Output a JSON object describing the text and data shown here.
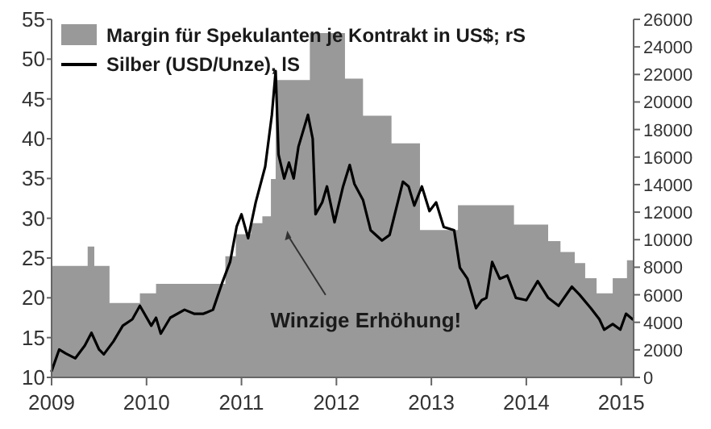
{
  "chart_data": {
    "type": "line",
    "xlim": [
      2009,
      2015.13
    ],
    "xticks": [
      2009,
      2010,
      2011,
      2012,
      2013,
      2014,
      2015
    ],
    "ylim": [
      10,
      55
    ],
    "yticks": [
      10,
      15,
      20,
      25,
      30,
      35,
      40,
      45,
      50,
      55
    ],
    "y2lim": [
      0,
      26000
    ],
    "y2ticks": [
      0,
      2000,
      4000,
      6000,
      8000,
      10000,
      12000,
      14000,
      16000,
      18000,
      20000,
      22000,
      24000,
      26000
    ],
    "legend": "top left",
    "grid": false,
    "annotations": [
      "Winzige Erhöhung!"
    ],
    "series": [
      {
        "name": "Margin für Spekulanten je Kontrakt in US$; rS",
        "type": "area",
        "axis": "y2",
        "color": "#999999",
        "x": [
          2009,
          2009.38,
          2009.38,
          2009.45,
          2009.45,
          2009.61,
          2009.61,
          2009.93,
          2009.93,
          2010.1,
          2010.1,
          2010.83,
          2010.83,
          2010.94,
          2010.94,
          2011.1,
          2011.1,
          2011.22,
          2011.22,
          2011.31,
          2011.31,
          2011.36,
          2011.36,
          2011.72,
          2011.72,
          2012.09,
          2012.09,
          2012.28,
          2012.28,
          2012.58,
          2012.58,
          2012.88,
          2012.88,
          2013.28,
          2013.28,
          2013.87,
          2013.87,
          2014.23,
          2014.23,
          2014.36,
          2014.36,
          2014.51,
          2014.51,
          2014.62,
          2014.62,
          2014.74,
          2014.74,
          2014.91,
          2014.91,
          2015.06,
          2015.06,
          2015.13
        ],
        "values": [
          8100,
          8100,
          9500,
          9500,
          8100,
          8100,
          5400,
          5400,
          6100,
          6100,
          6800,
          6800,
          8800,
          8800,
          10400,
          10400,
          11200,
          11200,
          11700,
          11700,
          14400,
          14400,
          21600,
          21600,
          25000,
          25000,
          21700,
          21700,
          19000,
          19000,
          17000,
          17000,
          10700,
          10700,
          12500,
          12500,
          11100,
          11100,
          9900,
          9900,
          9100,
          9100,
          8300,
          8300,
          7200,
          7200,
          6100,
          6100,
          7200,
          7200,
          8500,
          8500
        ]
      },
      {
        "name": "Silber (USD/Unze), lS",
        "color": "#000000",
        "x": [
          2009,
          2009.08,
          2009.15,
          2009.25,
          2009.35,
          2009.42,
          2009.5,
          2009.55,
          2009.65,
          2009.75,
          2009.85,
          2009.93,
          2010.05,
          2010.1,
          2010.15,
          2010.25,
          2010.4,
          2010.5,
          2010.6,
          2010.7,
          2010.8,
          2010.88,
          2010.95,
          2011,
          2011.07,
          2011.15,
          2011.25,
          2011.32,
          2011.36,
          2011.39,
          2011.45,
          2011.5,
          2011.55,
          2011.6,
          2011.65,
          2011.7,
          2011.75,
          2011.78,
          2011.85,
          2011.9,
          2011.98,
          2012.07,
          2012.14,
          2012.19,
          2012.28,
          2012.36,
          2012.48,
          2012.56,
          2012.7,
          2012.76,
          2012.82,
          2012.9,
          2012.98,
          2013.05,
          2013.13,
          2013.24,
          2013.3,
          2013.38,
          2013.47,
          2013.53,
          2013.58,
          2013.64,
          2013.72,
          2013.8,
          2013.89,
          2014,
          2014.12,
          2014.23,
          2014.34,
          2014.48,
          2014.56,
          2014.68,
          2014.77,
          2014.82,
          2014.91,
          2014.99,
          2015.05,
          2015.12
        ],
        "values": [
          10.8,
          13.5,
          13,
          12.4,
          14,
          15.6,
          13.5,
          12.9,
          14.5,
          16.5,
          17.3,
          19,
          16.5,
          17.5,
          15.5,
          17.5,
          18.5,
          18,
          18,
          18.5,
          22,
          24.5,
          29,
          30.5,
          27.5,
          32,
          36.5,
          43,
          48.5,
          38,
          35,
          37,
          35,
          39,
          41,
          43,
          40,
          30.5,
          32,
          34,
          29.5,
          34,
          36.7,
          34.3,
          32.3,
          28.5,
          27.2,
          27.9,
          34.6,
          34,
          31.6,
          34,
          30.9,
          32,
          28.9,
          28.5,
          23.8,
          22.4,
          18.7,
          19.7,
          20,
          24.5,
          22.4,
          22.8,
          20,
          19.7,
          22.1,
          20,
          19,
          21.4,
          20.4,
          18.7,
          17.3,
          16,
          16.7,
          16,
          18,
          17.3
        ]
      }
    ]
  }
}
